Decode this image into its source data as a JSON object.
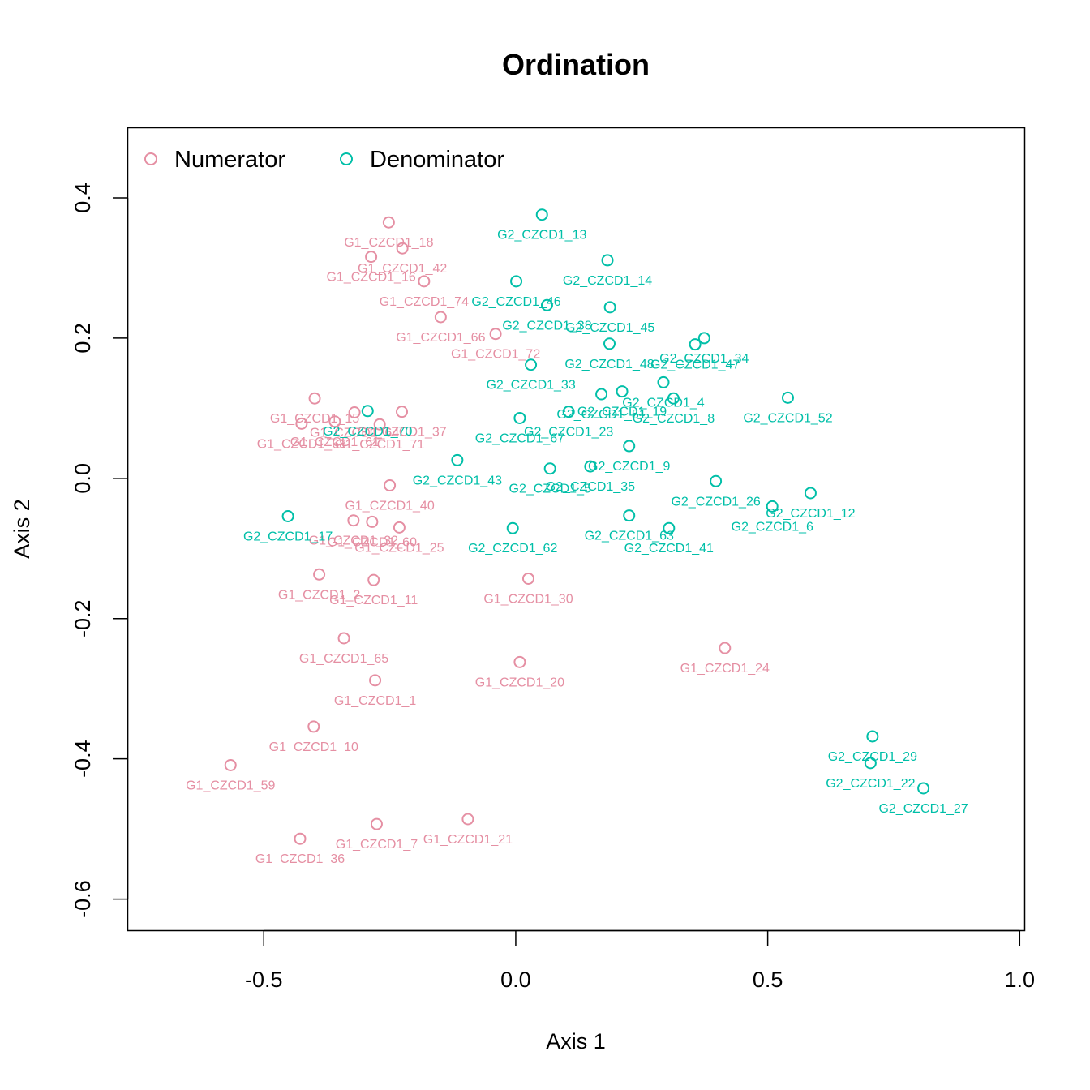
{
  "chart_data": {
    "type": "scatter",
    "title": "Ordination",
    "xlabel": "Axis 1",
    "ylabel": "Axis 2",
    "xlim": [
      -0.77,
      1.01
    ],
    "ylim": [
      -0.645,
      0.5
    ],
    "xticks": [
      -0.5,
      0.0,
      0.5,
      1.0
    ],
    "xtick_labels": [
      "-0.5",
      "0.0",
      "0.5",
      "1.0"
    ],
    "yticks": [
      -0.6,
      -0.4,
      -0.2,
      0.0,
      0.2,
      0.4
    ],
    "ytick_labels": [
      "-0.6",
      "-0.4",
      "-0.2",
      "0.0",
      "0.2",
      "0.4"
    ],
    "grid": false,
    "legend": {
      "placement": "top-left",
      "entries": [
        {
          "name": "Numerator",
          "color": "#E58FA3"
        },
        {
          "name": "Denominator",
          "color": "#00BFA8"
        }
      ]
    },
    "series": [
      {
        "name": "Numerator",
        "color": "#E58FA3",
        "points": [
          {
            "x": -0.252,
            "y": 0.365,
            "label": "G1_CZCD1_18"
          },
          {
            "x": -0.225,
            "y": 0.328,
            "label": "G1_CZCD1_42"
          },
          {
            "x": -0.287,
            "y": 0.316,
            "label": "G1_CZCD1_16"
          },
          {
            "x": -0.182,
            "y": 0.281,
            "label": "G1_CZCD1_74"
          },
          {
            "x": -0.149,
            "y": 0.23,
            "label": "G1_CZCD1_66"
          },
          {
            "x": -0.04,
            "y": 0.206,
            "label": "G1_CZCD1_72"
          },
          {
            "x": -0.399,
            "y": 0.114,
            "label": "G1_CZCD1_15"
          },
          {
            "x": -0.425,
            "y": 0.078,
            "label": "G1_CZCD1_68"
          },
          {
            "x": -0.32,
            "y": 0.094,
            "label": "G1_CZCD1_64"
          },
          {
            "x": -0.359,
            "y": 0.081,
            "label": "G1_CZCD1_61"
          },
          {
            "x": -0.27,
            "y": 0.077,
            "label": "G1_CZCD1_71"
          },
          {
            "x": -0.226,
            "y": 0.095,
            "label": "G1_CZCD1_37"
          },
          {
            "x": -0.25,
            "y": -0.01,
            "label": "G1_CZCD1_40"
          },
          {
            "x": -0.322,
            "y": -0.06,
            "label": "G1_CZCD1_32"
          },
          {
            "x": -0.285,
            "y": -0.062,
            "label": "G1_CZCD1_60"
          },
          {
            "x": -0.231,
            "y": -0.07,
            "label": "G1_CZCD1_25"
          },
          {
            "x": -0.39,
            "y": -0.137,
            "label": "G1_CZCD1_2"
          },
          {
            "x": -0.282,
            "y": -0.145,
            "label": "G1_CZCD1_11"
          },
          {
            "x": 0.025,
            "y": -0.143,
            "label": "G1_CZCD1_30"
          },
          {
            "x": -0.341,
            "y": -0.228,
            "label": "G1_CZCD1_65"
          },
          {
            "x": 0.008,
            "y": -0.262,
            "label": "G1_CZCD1_20"
          },
          {
            "x": 0.415,
            "y": -0.242,
            "label": "G1_CZCD1_24"
          },
          {
            "x": -0.279,
            "y": -0.288,
            "label": "G1_CZCD1_1"
          },
          {
            "x": -0.401,
            "y": -0.354,
            "label": "G1_CZCD1_10"
          },
          {
            "x": -0.566,
            "y": -0.409,
            "label": "G1_CZCD1_59"
          },
          {
            "x": -0.276,
            "y": -0.493,
            "label": "G1_CZCD1_7"
          },
          {
            "x": -0.095,
            "y": -0.486,
            "label": "G1_CZCD1_21"
          },
          {
            "x": -0.428,
            "y": -0.514,
            "label": "G1_CZCD1_36"
          }
        ]
      },
      {
        "name": "Denominator",
        "color": "#00BFA8",
        "points": [
          {
            "x": 0.052,
            "y": 0.376,
            "label": "G2_CZCD1_13"
          },
          {
            "x": 0.182,
            "y": 0.311,
            "label": "G2_CZCD1_14"
          },
          {
            "x": 0.001,
            "y": 0.281,
            "label": "G2_CZCD1_46"
          },
          {
            "x": 0.062,
            "y": 0.247,
            "label": "G2_CZCD1_38"
          },
          {
            "x": 0.187,
            "y": 0.244,
            "label": "G2_CZCD1_45"
          },
          {
            "x": 0.374,
            "y": 0.2,
            "label": "G2_CZCD1_34"
          },
          {
            "x": 0.356,
            "y": 0.191,
            "label": "G2_CZCD1_47"
          },
          {
            "x": 0.186,
            "y": 0.192,
            "label": "G2_CZCD1_48"
          },
          {
            "x": 0.03,
            "y": 0.162,
            "label": "G2_CZCD1_33"
          },
          {
            "x": 0.293,
            "y": 0.137,
            "label": "G2_CZCD1_4"
          },
          {
            "x": 0.54,
            "y": 0.115,
            "label": "G2_CZCD1_52"
          },
          {
            "x": 0.17,
            "y": 0.12,
            "label": "G2_CZCD1_51"
          },
          {
            "x": 0.211,
            "y": 0.124,
            "label": "G2_CZCD1_19"
          },
          {
            "x": 0.313,
            "y": 0.114,
            "label": "G2_CZCD1_8"
          },
          {
            "x": 0.105,
            "y": 0.095,
            "label": "G2_CZCD1_23"
          },
          {
            "x": 0.008,
            "y": 0.086,
            "label": "G2_CZCD1_67"
          },
          {
            "x": -0.294,
            "y": 0.096,
            "label": "G2_CZCD1_70"
          },
          {
            "x": -0.116,
            "y": 0.026,
            "label": "G2_CZCD1_43"
          },
          {
            "x": 0.225,
            "y": 0.046,
            "label": "G2_CZCD1_9"
          },
          {
            "x": 0.068,
            "y": 0.014,
            "label": "G2_CZCD1_5"
          },
          {
            "x": 0.148,
            "y": 0.017,
            "label": "G2_CZCD1_35"
          },
          {
            "x": 0.397,
            "y": -0.004,
            "label": "G2_CZCD1_26"
          },
          {
            "x": 0.585,
            "y": -0.021,
            "label": "G2_CZCD1_12"
          },
          {
            "x": 0.509,
            "y": -0.04,
            "label": "G2_CZCD1_6"
          },
          {
            "x": -0.452,
            "y": -0.054,
            "label": "G2_CZCD1_17"
          },
          {
            "x": 0.225,
            "y": -0.053,
            "label": "G2_CZCD1_63"
          },
          {
            "x": -0.006,
            "y": -0.071,
            "label": "G2_CZCD1_62"
          },
          {
            "x": 0.304,
            "y": -0.071,
            "label": "G2_CZCD1_41"
          },
          {
            "x": 0.708,
            "y": -0.368,
            "label": "G2_CZCD1_29"
          },
          {
            "x": 0.704,
            "y": -0.406,
            "label": "G2_CZCD1_22"
          },
          {
            "x": 0.809,
            "y": -0.442,
            "label": "G2_CZCD1_27"
          }
        ]
      }
    ]
  }
}
